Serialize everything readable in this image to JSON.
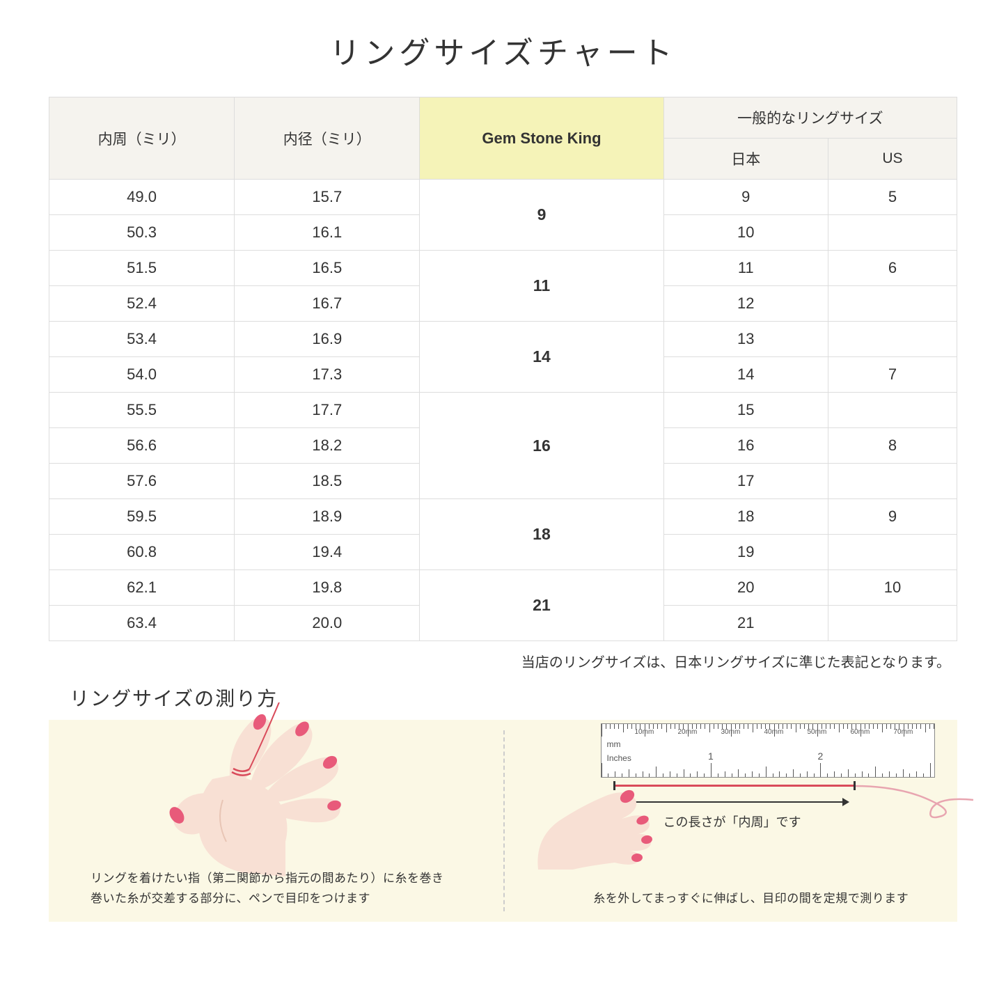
{
  "title": "リングサイズチャート",
  "table": {
    "headers": {
      "col1": "内周（ミリ）",
      "col2": "内径（ミリ）",
      "col3": "Gem Stone King",
      "col4_group": "一般的なリングサイズ",
      "col4a": "日本",
      "col4b": "US"
    },
    "header_bg": "#f5f3ee",
    "gsk_header_bg": "#f5f3b8",
    "border_color": "#dddddd",
    "rows": [
      {
        "c": "49.0",
        "d": "15.7",
        "g": "9",
        "gspan": 2,
        "j": "9",
        "u": "5"
      },
      {
        "c": "50.3",
        "d": "16.1",
        "j": "10",
        "u": ""
      },
      {
        "c": "51.5",
        "d": "16.5",
        "g": "11",
        "gspan": 2,
        "j": "11",
        "u": "6"
      },
      {
        "c": "52.4",
        "d": "16.7",
        "j": "12",
        "u": ""
      },
      {
        "c": "53.4",
        "d": "16.9",
        "g": "14",
        "gspan": 2,
        "j": "13",
        "u": ""
      },
      {
        "c": "54.0",
        "d": "17.3",
        "j": "14",
        "u": "7"
      },
      {
        "c": "55.5",
        "d": "17.7",
        "g": "16",
        "gspan": 3,
        "j": "15",
        "u": ""
      },
      {
        "c": "56.6",
        "d": "18.2",
        "j": "16",
        "u": "8"
      },
      {
        "c": "57.6",
        "d": "18.5",
        "j": "17",
        "u": ""
      },
      {
        "c": "59.5",
        "d": "18.9",
        "g": "18",
        "gspan": 2,
        "j": "18",
        "u": "9"
      },
      {
        "c": "60.8",
        "d": "19.4",
        "j": "19",
        "u": ""
      },
      {
        "c": "62.1",
        "d": "19.8",
        "g": "21",
        "gspan": 2,
        "j": "20",
        "u": "10"
      },
      {
        "c": "63.4",
        "d": "20.0",
        "j": "21",
        "u": ""
      }
    ]
  },
  "note": "当店のリングサイズは、日本リングサイズに準じた表記となります。",
  "how": {
    "title": "リングサイズの測り方",
    "panel_bg": "#fbf8e5",
    "left_caption_1": "リングを着けたい指（第二関節から指元の間あたり）に糸を巻き",
    "left_caption_2": "巻いた糸が交差する部分に、ペンで目印をつけます",
    "right_label": "この長さが「内周」です",
    "right_caption": "糸を外してまっすぐに伸ばし、目印の間を定規で測ります",
    "skin_color": "#f8e0d4",
    "skin_shadow": "#e8c5b5",
    "nail_color": "#e85a7a",
    "thread_color": "#d94a5a",
    "ruler": {
      "mm_unit": "mm",
      "inch_unit": "Inches",
      "mm_labels": [
        "10mm",
        "20mm",
        "30mm",
        "40mm",
        "50mm",
        "60mm",
        "70mm"
      ],
      "inch_labels": [
        "1",
        "2"
      ],
      "tick_color": "#555555"
    }
  }
}
